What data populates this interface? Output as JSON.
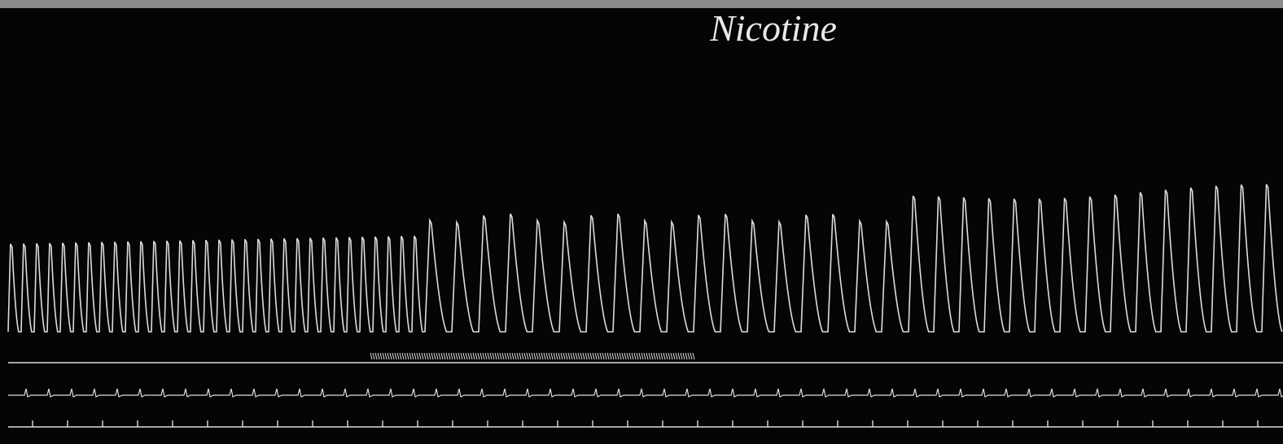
{
  "title": "Nicotine"
}
